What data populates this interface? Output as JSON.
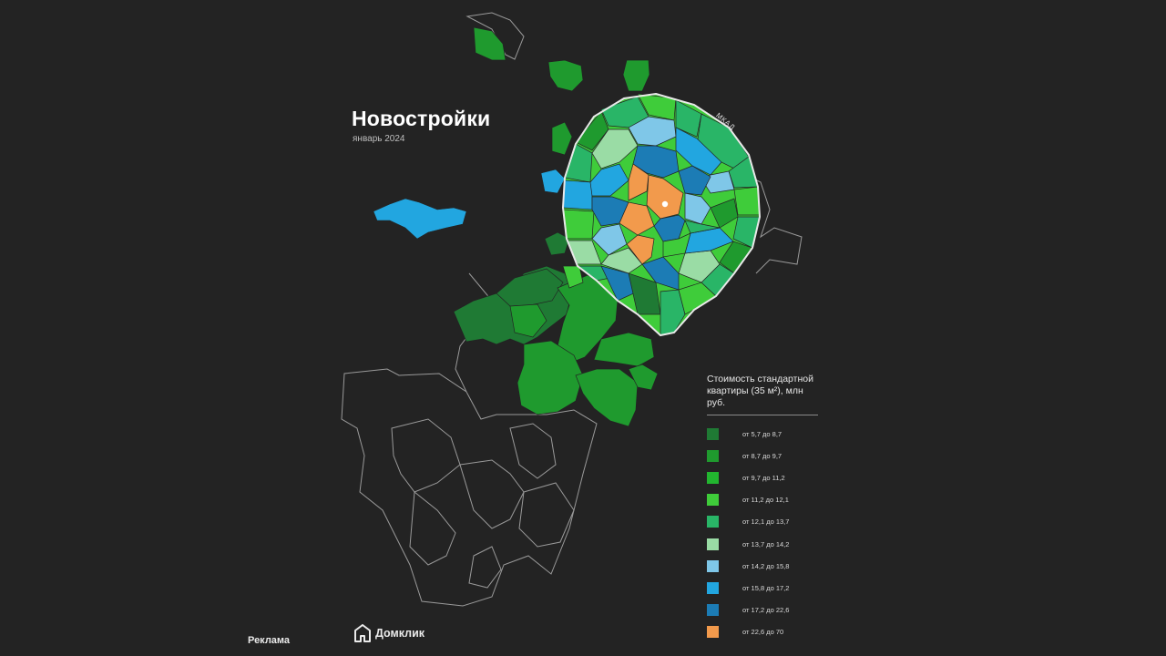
{
  "title": "Новостройки",
  "subtitle": "январь 2024",
  "ring_label": "МКАД",
  "legend": {
    "title": "Стоимость стандартной квартиры (35 м²), млн руб.",
    "items": [
      {
        "label": "от 5,7 до 8,7",
        "color": "#1f7a34"
      },
      {
        "label": "от 8,7 до 9,7",
        "color": "#1f9a2e"
      },
      {
        "label": "от 9,7 до 11,2",
        "color": "#22b52f"
      },
      {
        "label": "от 11,2 до 12,1",
        "color": "#3fcc3a"
      },
      {
        "label": "от 12,1 до 13,7",
        "color": "#29b567"
      },
      {
        "label": "от 13,7 до 14,2",
        "color": "#9adca5"
      },
      {
        "label": "от 14,2 до 15,8",
        "color": "#7fc7e8"
      },
      {
        "label": "от 15,8 до 17,2",
        "color": "#22a6e0"
      },
      {
        "label": "от 17,2 до 22,6",
        "color": "#1c7cb5"
      },
      {
        "label": "от 22,6 до 70",
        "color": "#f29a4c"
      }
    ]
  },
  "footer": {
    "ad_label": "Реклама",
    "brand_name": "Домклик",
    "brand_icon": "house-logo-icon"
  }
}
